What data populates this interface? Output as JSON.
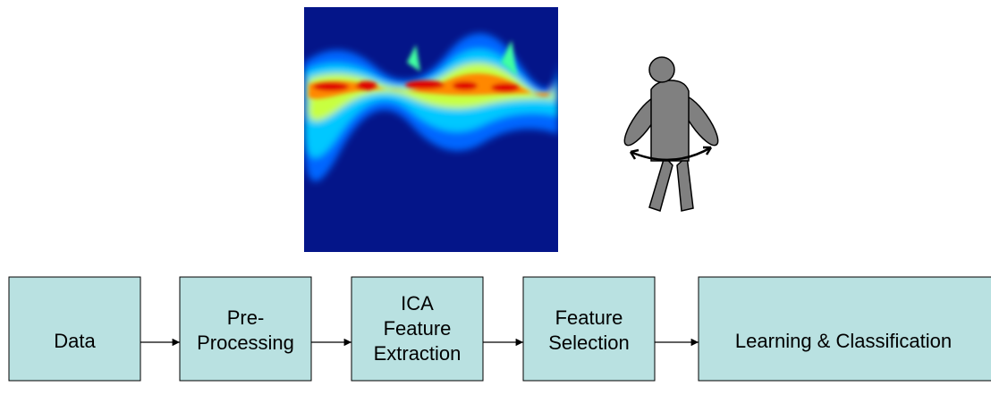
{
  "nodes": [
    {
      "lines": [
        "Data"
      ]
    },
    {
      "lines": [
        "Pre-",
        "Processing"
      ]
    },
    {
      "lines": [
        "ICA",
        "Feature",
        "Extraction"
      ]
    },
    {
      "lines": [
        "Feature",
        "Selection"
      ]
    },
    {
      "lines": [
        "Learning & Classification"
      ]
    }
  ]
}
